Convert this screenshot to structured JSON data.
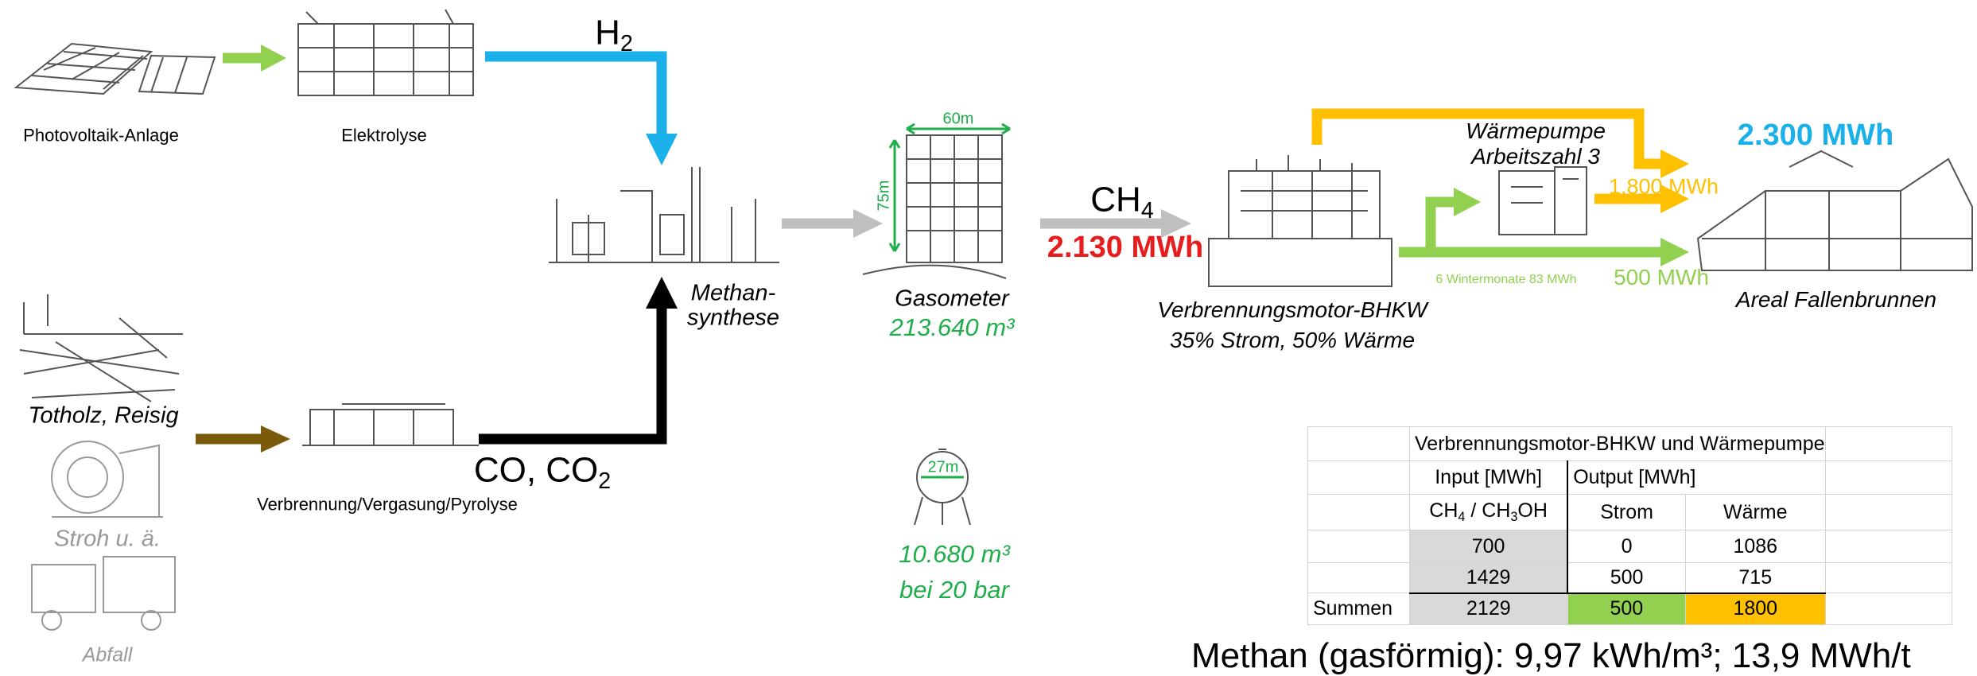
{
  "photovoltaik": "Photovoltaik-Anlage",
  "elektrolyse": "Elektrolyse",
  "h2": [
    "H",
    "2"
  ],
  "methansynthese": [
    "Methan-",
    "synthese"
  ],
  "co_co2": [
    "CO, CO",
    "2"
  ],
  "totholz": "Totholz, Reisig",
  "stroh": "Stroh u. ä.",
  "abfall": "Abfall",
  "verbrennung": "Verbrennung/Vergasung/Pyrolyse",
  "gasometer": {
    "label": "Gasometer",
    "volume": "213.640 m³",
    "width": "60m",
    "height": "75m"
  },
  "ch4": [
    "CH",
    "4"
  ],
  "energy_ch4": "2.130 MWh",
  "bhkw": {
    "label": "Verbrennungsmotor-BHKW",
    "note": "35% Strom, 50% Wärme"
  },
  "waermepumpe": [
    "Wärmepumpe",
    "Arbeitszahl 3"
  ],
  "heat": "1.800 MWh",
  "total": "2.300 MWh",
  "winter": "6 Wintermonate 83 MWh",
  "power": "500 MWh",
  "areal": "Areal Fallenbrunnen",
  "tank": {
    "diameter": "27m",
    "volume": "10.680 m³",
    "pressure": "bei 20 bar"
  },
  "table": {
    "title": "Verbrennungsmotor-BHKW und Wärmepumpe",
    "header1": [
      "Input [MWh]",
      "Output [MWh]"
    ],
    "header2": [
      [
        "CH",
        "4",
        " / CH",
        "3",
        "OH"
      ],
      "Strom",
      "Wärme"
    ],
    "rows": [
      {
        "values": [
          700,
          0,
          1086
        ]
      },
      {
        "values": [
          1429,
          500,
          715
        ]
      },
      {
        "label": "Summen",
        "values": [
          2129,
          500,
          1800
        ]
      }
    ]
  },
  "footnote": "Methan (gasförmig): 9,97 kWh/m³; 13,9 MWh/t"
}
